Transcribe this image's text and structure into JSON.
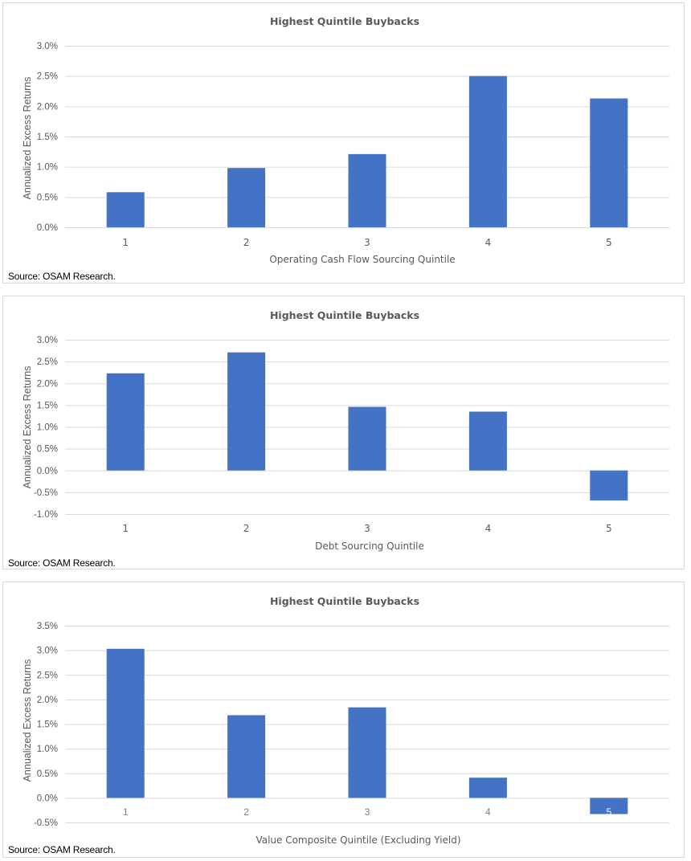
{
  "chart_data": [
    {
      "type": "bar",
      "title": "Highest Quintile Buybacks",
      "xlabel": "Operating Cash Flow Sourcing Quintile",
      "ylabel": "Annualized Excess Returns",
      "categories": [
        "1",
        "2",
        "3",
        "4",
        "5"
      ],
      "values": [
        0.58,
        0.98,
        1.21,
        2.5,
        2.13
      ],
      "value_unit": "%",
      "ylim": [
        0.0,
        3.0
      ],
      "yticks": [
        0.0,
        0.5,
        1.0,
        1.5,
        2.0,
        2.5,
        3.0
      ],
      "ytick_labels": [
        "0.0%",
        "0.5%",
        "1.0%",
        "1.5%",
        "2.0%",
        "2.5%",
        "3.0%"
      ],
      "grid": true,
      "legend": "none",
      "bar_color": "#4472C4",
      "source": "Source: OSAM Research."
    },
    {
      "type": "bar",
      "title": "Highest Quintile Buybacks",
      "xlabel": "Debt Sourcing Quintile",
      "ylabel": "Annualized Excess Returns",
      "categories": [
        "1",
        "2",
        "3",
        "4",
        "5"
      ],
      "values": [
        2.23,
        2.71,
        1.46,
        1.35,
        -0.69
      ],
      "value_unit": "%",
      "ylim": [
        -1.0,
        3.0
      ],
      "yticks": [
        -1.0,
        -0.5,
        0.0,
        0.5,
        1.0,
        1.5,
        2.0,
        2.5,
        3.0
      ],
      "ytick_labels": [
        "-1.0%",
        "-0.5%",
        "0.0%",
        "0.5%",
        "1.0%",
        "1.5%",
        "2.0%",
        "2.5%",
        "3.0%"
      ],
      "grid": true,
      "legend": "none",
      "bar_color": "#4472C4",
      "source": "Source: OSAM Research."
    },
    {
      "type": "bar",
      "title": "Highest Quintile Buybacks",
      "xlabel": "Value Composite Quintile (Excluding Yield)",
      "ylabel": "Annualized Excess Returns",
      "categories": [
        "1",
        "2",
        "3",
        "4",
        "5"
      ],
      "values": [
        3.03,
        1.68,
        1.84,
        0.41,
        -0.33
      ],
      "value_unit": "%",
      "ylim": [
        -0.5,
        3.5
      ],
      "yticks": [
        -0.5,
        0.0,
        0.5,
        1.0,
        1.5,
        2.0,
        2.5,
        3.0,
        3.5
      ],
      "ytick_labels": [
        "-0.5%",
        "0.0%",
        "0.5%",
        "1.0%",
        "1.5%",
        "2.0%",
        "2.5%",
        "3.0%",
        "3.5%"
      ],
      "grid": true,
      "legend": "none",
      "bar_color": "#4472C4",
      "category_labels_at_zero": true,
      "source": "Source: OSAM Research."
    }
  ]
}
